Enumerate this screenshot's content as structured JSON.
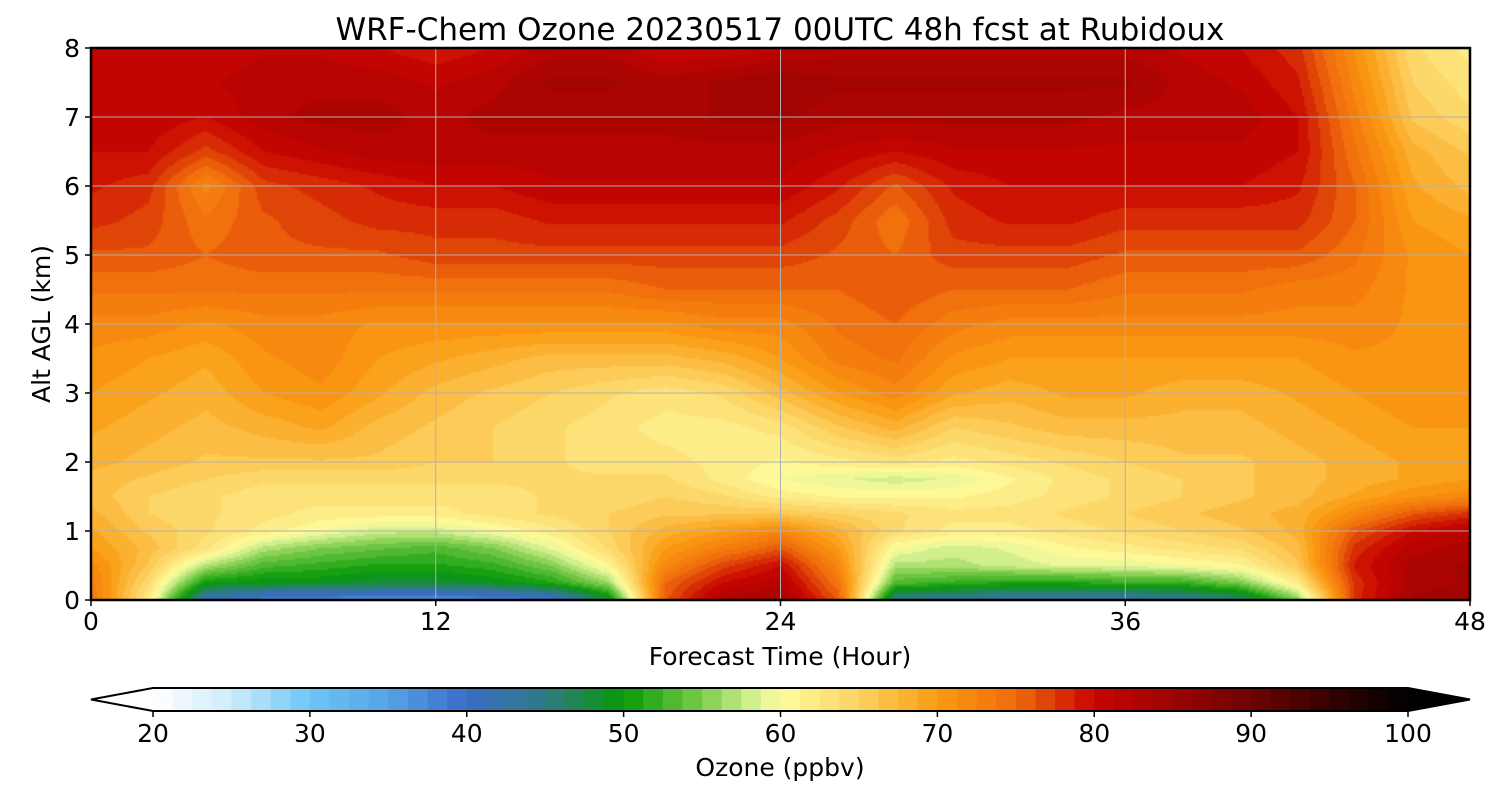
{
  "chart_data": {
    "type": "heatmap",
    "title": "WRF-Chem Ozone  20230517 00UTC 48h fcst at Rubidoux",
    "xlabel": "Forecast Time (Hour)",
    "ylabel": "Alt AGL (km)",
    "xlim": [
      0,
      48
    ],
    "ylim": [
      0,
      8
    ],
    "x_ticks": [
      "0",
      "12",
      "24",
      "36",
      "48"
    ],
    "y_ticks": [
      "0",
      "1",
      "2",
      "3",
      "4",
      "5",
      "6",
      "7",
      "8"
    ],
    "grid": true,
    "colorbar": {
      "label": "Ozone  (ppbv)",
      "min": 20,
      "max": 100,
      "ticks": [
        "20",
        "30",
        "40",
        "50",
        "60",
        "70",
        "80",
        "90",
        "100"
      ],
      "extend": "both",
      "orientation": "horizontal",
      "colors": [
        [
          20,
          "#ffffff"
        ],
        [
          25,
          "#cdebfb"
        ],
        [
          30,
          "#6cc6f5"
        ],
        [
          35,
          "#55a3e6"
        ],
        [
          40,
          "#3a6cc6"
        ],
        [
          45,
          "#2f7a84"
        ],
        [
          50,
          "#079a07"
        ],
        [
          55,
          "#7ccc4a"
        ],
        [
          58,
          "#cfee8c"
        ],
        [
          60,
          "#fefd9e"
        ],
        [
          65,
          "#fcd262"
        ],
        [
          70,
          "#fb9b12"
        ],
        [
          75,
          "#ef6b0c"
        ],
        [
          80,
          "#c80501"
        ],
        [
          90,
          "#6e0202"
        ],
        [
          100,
          "#000000"
        ]
      ]
    },
    "x": [
      0,
      2,
      4,
      6,
      8,
      10,
      12,
      14,
      16,
      18,
      20,
      22,
      24,
      26,
      28,
      30,
      32,
      34,
      36,
      38,
      40,
      42,
      44,
      46,
      48
    ],
    "y": [
      0,
      0.25,
      0.5,
      0.75,
      1,
      1.25,
      1.5,
      1.75,
      2,
      2.5,
      3,
      3.5,
      4,
      4.5,
      5,
      5.5,
      6,
      6.5,
      7,
      7.5,
      8
    ],
    "z": [
      [
        74,
        62,
        41,
        38,
        37,
        36,
        36,
        37,
        39,
        48,
        76,
        83,
        84,
        76,
        44,
        43,
        42,
        42,
        42,
        43,
        45,
        55,
        78,
        84,
        85
      ],
      [
        73,
        64,
        50,
        49,
        49,
        48,
        48,
        49,
        51,
        56,
        75,
        80,
        82,
        74,
        53,
        52,
        51,
        51,
        52,
        52,
        55,
        62,
        78,
        83,
        84
      ],
      [
        72,
        66,
        57,
        53,
        52,
        51,
        51,
        52,
        55,
        61,
        72,
        77,
        80,
        72,
        57,
        57,
        58,
        59,
        59,
        60,
        61,
        66,
        79,
        83,
        84
      ],
      [
        70,
        67,
        63,
        57,
        55,
        54,
        53,
        55,
        59,
        64,
        70,
        73,
        76,
        70,
        60,
        58,
        59,
        61,
        62,
        63,
        64,
        67,
        78,
        82,
        83
      ],
      [
        69,
        66,
        64,
        62,
        60,
        58,
        58,
        60,
        62,
        65,
        68,
        70,
        72,
        68,
        64,
        62,
        62,
        63,
        64,
        65,
        66,
        68,
        76,
        80,
        82
      ],
      [
        68,
        65,
        64,
        63,
        62,
        62,
        62,
        63,
        64,
        65,
        66,
        66,
        66,
        65,
        64,
        63,
        63,
        64,
        65,
        66,
        67,
        68,
        72,
        76,
        78
      ],
      [
        67,
        65,
        64,
        63,
        63,
        63,
        63,
        63,
        64,
        64,
        65,
        64,
        62,
        61,
        61,
        61,
        62,
        63,
        64,
        65,
        66,
        67,
        69,
        71,
        72
      ],
      [
        67,
        66,
        65,
        64,
        64,
        64,
        64,
        64,
        64,
        64,
        64,
        62,
        60,
        59,
        58,
        59,
        61,
        63,
        64,
        65,
        66,
        67,
        68,
        69,
        70
      ],
      [
        68,
        67,
        66,
        66,
        66,
        66,
        65,
        65,
        64,
        63,
        63,
        62,
        61,
        62,
        63,
        62,
        63,
        64,
        65,
        66,
        66,
        67,
        68,
        69,
        70
      ],
      [
        69,
        68,
        67,
        68,
        69,
        67,
        66,
        65,
        64,
        63,
        62,
        62,
        63,
        66,
        68,
        65,
        66,
        67,
        67,
        67,
        67,
        68,
        69,
        70,
        70
      ],
      [
        70,
        69,
        68,
        70,
        71,
        69,
        67,
        66,
        65,
        64,
        63,
        64,
        67,
        70,
        72,
        69,
        68,
        69,
        69,
        68,
        68,
        69,
        70,
        71,
        71
      ],
      [
        71,
        70,
        69,
        71,
        72,
        70,
        69,
        68,
        67,
        67,
        67,
        68,
        70,
        73,
        74,
        71,
        70,
        70,
        70,
        70,
        70,
        70,
        71,
        71,
        71
      ],
      [
        72,
        72,
        71,
        72,
        72,
        71,
        71,
        71,
        71,
        71,
        71,
        72,
        72,
        74,
        75,
        73,
        72,
        72,
        72,
        72,
        72,
        72,
        72,
        71,
        71
      ],
      [
        74,
        74,
        74,
        74,
        74,
        74,
        74,
        74,
        74,
        74,
        75,
        75,
        75,
        75,
        76,
        75,
        75,
        75,
        74,
        74,
        74,
        73,
        73,
        71,
        70
      ],
      [
        76,
        76,
        75,
        76,
        76,
        76,
        77,
        77,
        77,
        77,
        77,
        77,
        77,
        76,
        75,
        77,
        77,
        77,
        76,
        76,
        76,
        76,
        74,
        71,
        70
      ],
      [
        78,
        77,
        74,
        76,
        77,
        78,
        78,
        78,
        79,
        79,
        79,
        79,
        79,
        77,
        74,
        78,
        79,
        79,
        78,
        78,
        78,
        78,
        75,
        70,
        69
      ],
      [
        79,
        78,
        72,
        77,
        78,
        79,
        80,
        80,
        81,
        81,
        81,
        81,
        81,
        79,
        76,
        79,
        80,
        80,
        80,
        80,
        80,
        79,
        75,
        69,
        67
      ],
      [
        80,
        80,
        77,
        80,
        81,
        82,
        82,
        82,
        82,
        82,
        82,
        82,
        82,
        81,
        80,
        81,
        81,
        81,
        81,
        81,
        81,
        80,
        74,
        68,
        66
      ],
      [
        81,
        81,
        80,
        82,
        83,
        83,
        82,
        83,
        83,
        83,
        83,
        84,
        84,
        83,
        83,
        83,
        83,
        83,
        82,
        82,
        82,
        80,
        73,
        66,
        64
      ],
      [
        81,
        81,
        81,
        82,
        82,
        82,
        81,
        82,
        84,
        84,
        83,
        84,
        85,
        84,
        84,
        84,
        84,
        84,
        84,
        82,
        81,
        79,
        72,
        65,
        63
      ],
      [
        80,
        80,
        80,
        81,
        81,
        80,
        79,
        80,
        82,
        82,
        80,
        80,
        81,
        82,
        82,
        82,
        82,
        82,
        82,
        81,
        80,
        78,
        71,
        64,
        62
      ]
    ]
  }
}
